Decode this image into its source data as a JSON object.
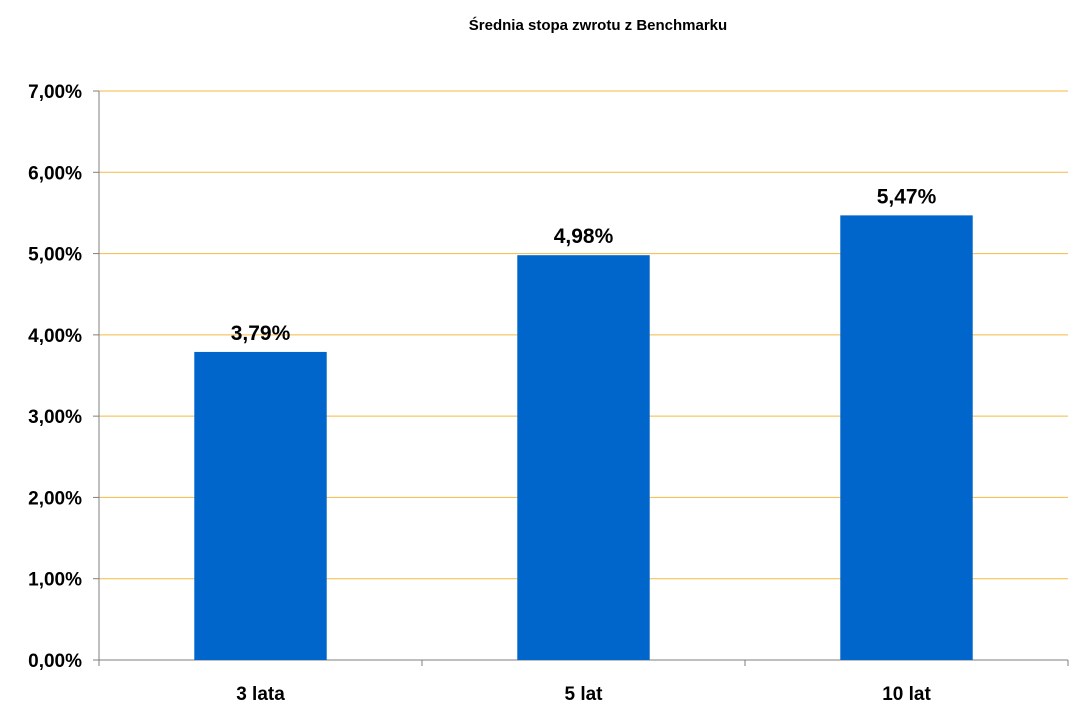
{
  "colors": {
    "bar": "#0066CC",
    "gridline": "#F5B942",
    "axis": "#7F7F7F",
    "text": "#000000",
    "background": "#FFFFFF"
  },
  "chart_data": {
    "type": "bar",
    "title": "Średnia stopa zwrotu z Benchmarku",
    "xlabel": "",
    "ylabel": "",
    "categories": [
      "3 lata",
      "5 lat",
      "10 lat"
    ],
    "values": [
      3.79,
      4.98,
      5.47
    ],
    "data_labels": [
      "3,79%",
      "4,98%",
      "5,47%"
    ],
    "ylim": [
      0,
      7
    ],
    "yticks": [
      0,
      1,
      2,
      3,
      4,
      5,
      6,
      7
    ],
    "ytick_labels": [
      "0,00%",
      "1,00%",
      "2,00%",
      "3,00%",
      "4,00%",
      "5,00%",
      "6,00%",
      "7,00%"
    ],
    "grid": true,
    "legend": "none"
  }
}
